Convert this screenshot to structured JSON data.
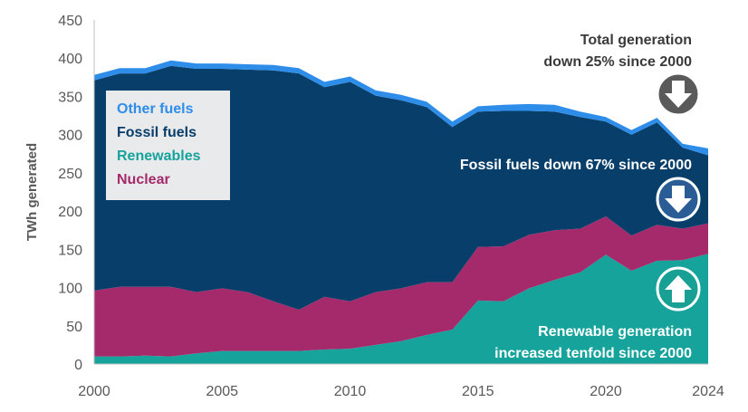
{
  "chart_data": {
    "type": "area",
    "stacked": true,
    "x": [
      2000,
      2001,
      2002,
      2003,
      2004,
      2005,
      2006,
      2007,
      2008,
      2009,
      2010,
      2011,
      2012,
      2013,
      2014,
      2015,
      2016,
      2017,
      2018,
      2019,
      2020,
      2021,
      2022,
      2023,
      2024
    ],
    "xticks": [
      "2000",
      "2005",
      "2010",
      "2015",
      "2020",
      "2024"
    ],
    "yticks": [
      "0",
      "50",
      "100",
      "150",
      "200",
      "250",
      "300",
      "350",
      "400",
      "450"
    ],
    "ylabel": "TWh generated",
    "ylim": [
      0,
      450
    ],
    "grid": false,
    "legend_position": "top-left",
    "series": [
      {
        "name": "Renewables",
        "color": "#16a39b",
        "values": [
          10,
          10,
          11,
          10,
          14,
          17,
          17,
          17,
          17,
          19,
          20,
          25,
          30,
          38,
          45,
          83,
          82,
          99,
          110,
          120,
          143,
          122,
          135,
          136,
          144
        ]
      },
      {
        "name": "Nuclear",
        "color": "#a42a6c",
        "values": [
          86,
          91,
          90,
          91,
          80,
          82,
          77,
          65,
          54,
          69,
          62,
          69,
          69,
          69,
          62,
          70,
          72,
          70,
          65,
          57,
          50,
          46,
          47,
          41,
          40
        ]
      },
      {
        "name": "Fossil fuels",
        "color": "#083e6a",
        "values": [
          275,
          279,
          279,
          289,
          292,
          287,
          291,
          302,
          309,
          274,
          287,
          257,
          246,
          229,
          203,
          177,
          177,
          162,
          155,
          146,
          124,
          132,
          134,
          106,
          89
        ]
      },
      {
        "name": "Other fuels",
        "color": "#2e8de8",
        "values": [
          7,
          7,
          7,
          7,
          7,
          7,
          7,
          7,
          7,
          7,
          7,
          7,
          7,
          7,
          7,
          7,
          8,
          9,
          9,
          7,
          6,
          6,
          6,
          5,
          9
        ]
      }
    ],
    "legend": [
      {
        "label": "Other fuels",
        "color": "#2e8de8"
      },
      {
        "label": "Fossil fuels",
        "color": "#083e6a"
      },
      {
        "label": "Renewables",
        "color": "#16a39b"
      },
      {
        "label": "Nuclear",
        "color": "#a42a6c"
      }
    ],
    "annotations": [
      {
        "id": "total",
        "lines": [
          "Total generation",
          "down 25% since 2000"
        ],
        "color": "#3a3a3a",
        "arrow": "down",
        "arrow_color": "#5a5a5a"
      },
      {
        "id": "fossil",
        "lines": [
          "Fossil fuels down 67% since 2000"
        ],
        "color": "#ffffff",
        "arrow": "down",
        "arrow_color": "#2a5d96"
      },
      {
        "id": "renew",
        "lines": [
          "Renewable generation",
          "increased tenfold since 2000"
        ],
        "color": "#ffffff",
        "arrow": "up",
        "arrow_color": "#19a095"
      }
    ]
  }
}
